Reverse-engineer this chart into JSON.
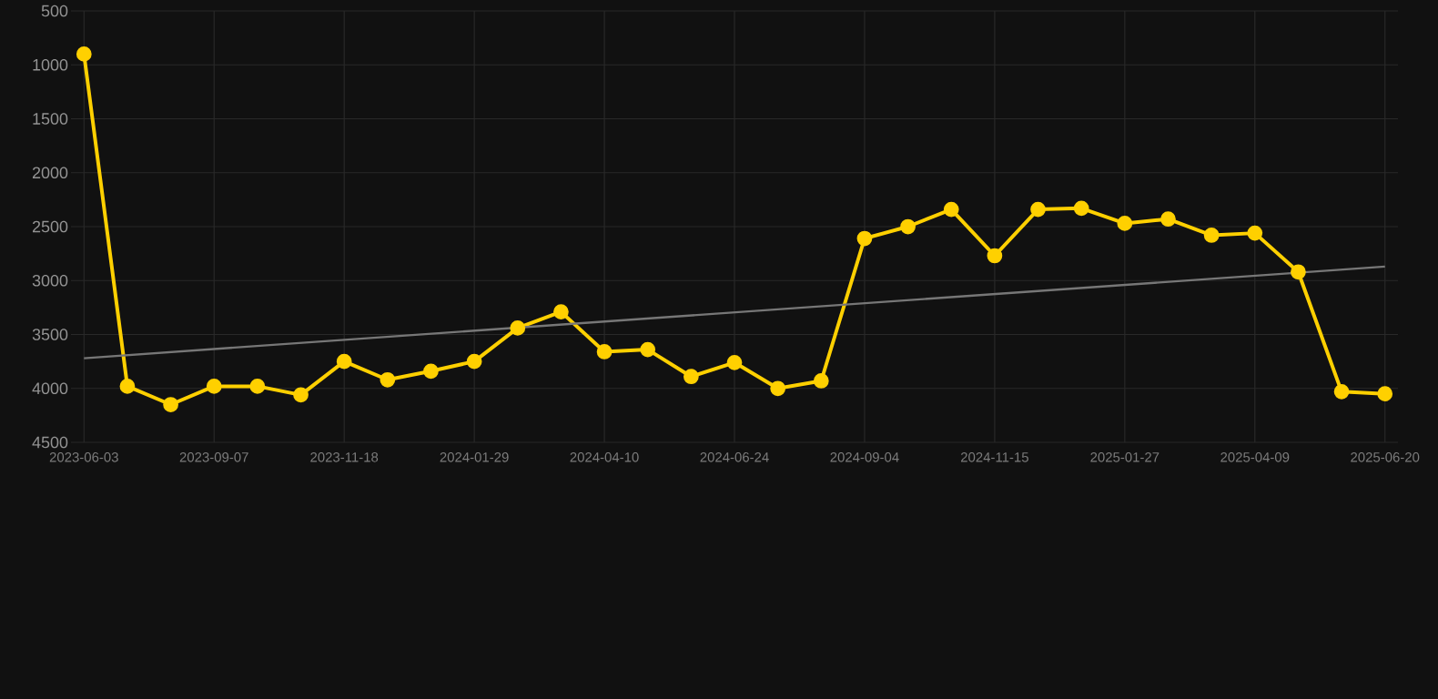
{
  "chart_data": {
    "type": "line",
    "categories": [
      "2023-06-03",
      null,
      null,
      "2023-09-07",
      null,
      null,
      "2023-11-18",
      null,
      null,
      "2024-01-29",
      null,
      null,
      "2024-04-10",
      null,
      null,
      "2024-06-24",
      null,
      null,
      "2024-09-04",
      null,
      null,
      "2024-11-15",
      null,
      null,
      "2025-01-27",
      null,
      null,
      "2025-04-09",
      null,
      null,
      "2025-06-20"
    ],
    "series": [
      {
        "color": "#ffd000",
        "marker": "circle",
        "values": [
          900,
          3980,
          4150,
          3980,
          3980,
          4060,
          3750,
          3920,
          3840,
          3750,
          3440,
          3290,
          3660,
          3640,
          3890,
          3760,
          4000,
          3930,
          2610,
          2500,
          2340,
          2770,
          2340,
          2330,
          2470,
          2430,
          2580,
          2560,
          2920,
          4030,
          4050
        ]
      },
      {
        "type": "line",
        "color": "#777777",
        "marker": "none",
        "values": [
          3720,
          null,
          null,
          null,
          null,
          null,
          null,
          null,
          null,
          null,
          null,
          null,
          null,
          null,
          null,
          null,
          null,
          null,
          null,
          null,
          null,
          null,
          null,
          null,
          null,
          null,
          null,
          null,
          null,
          null,
          2870
        ]
      }
    ],
    "ylim": [
      4500,
      500
    ],
    "yticks": [
      500,
      1000,
      1500,
      2000,
      2500,
      3000,
      3500,
      4000,
      4500
    ],
    "grid": true
  }
}
